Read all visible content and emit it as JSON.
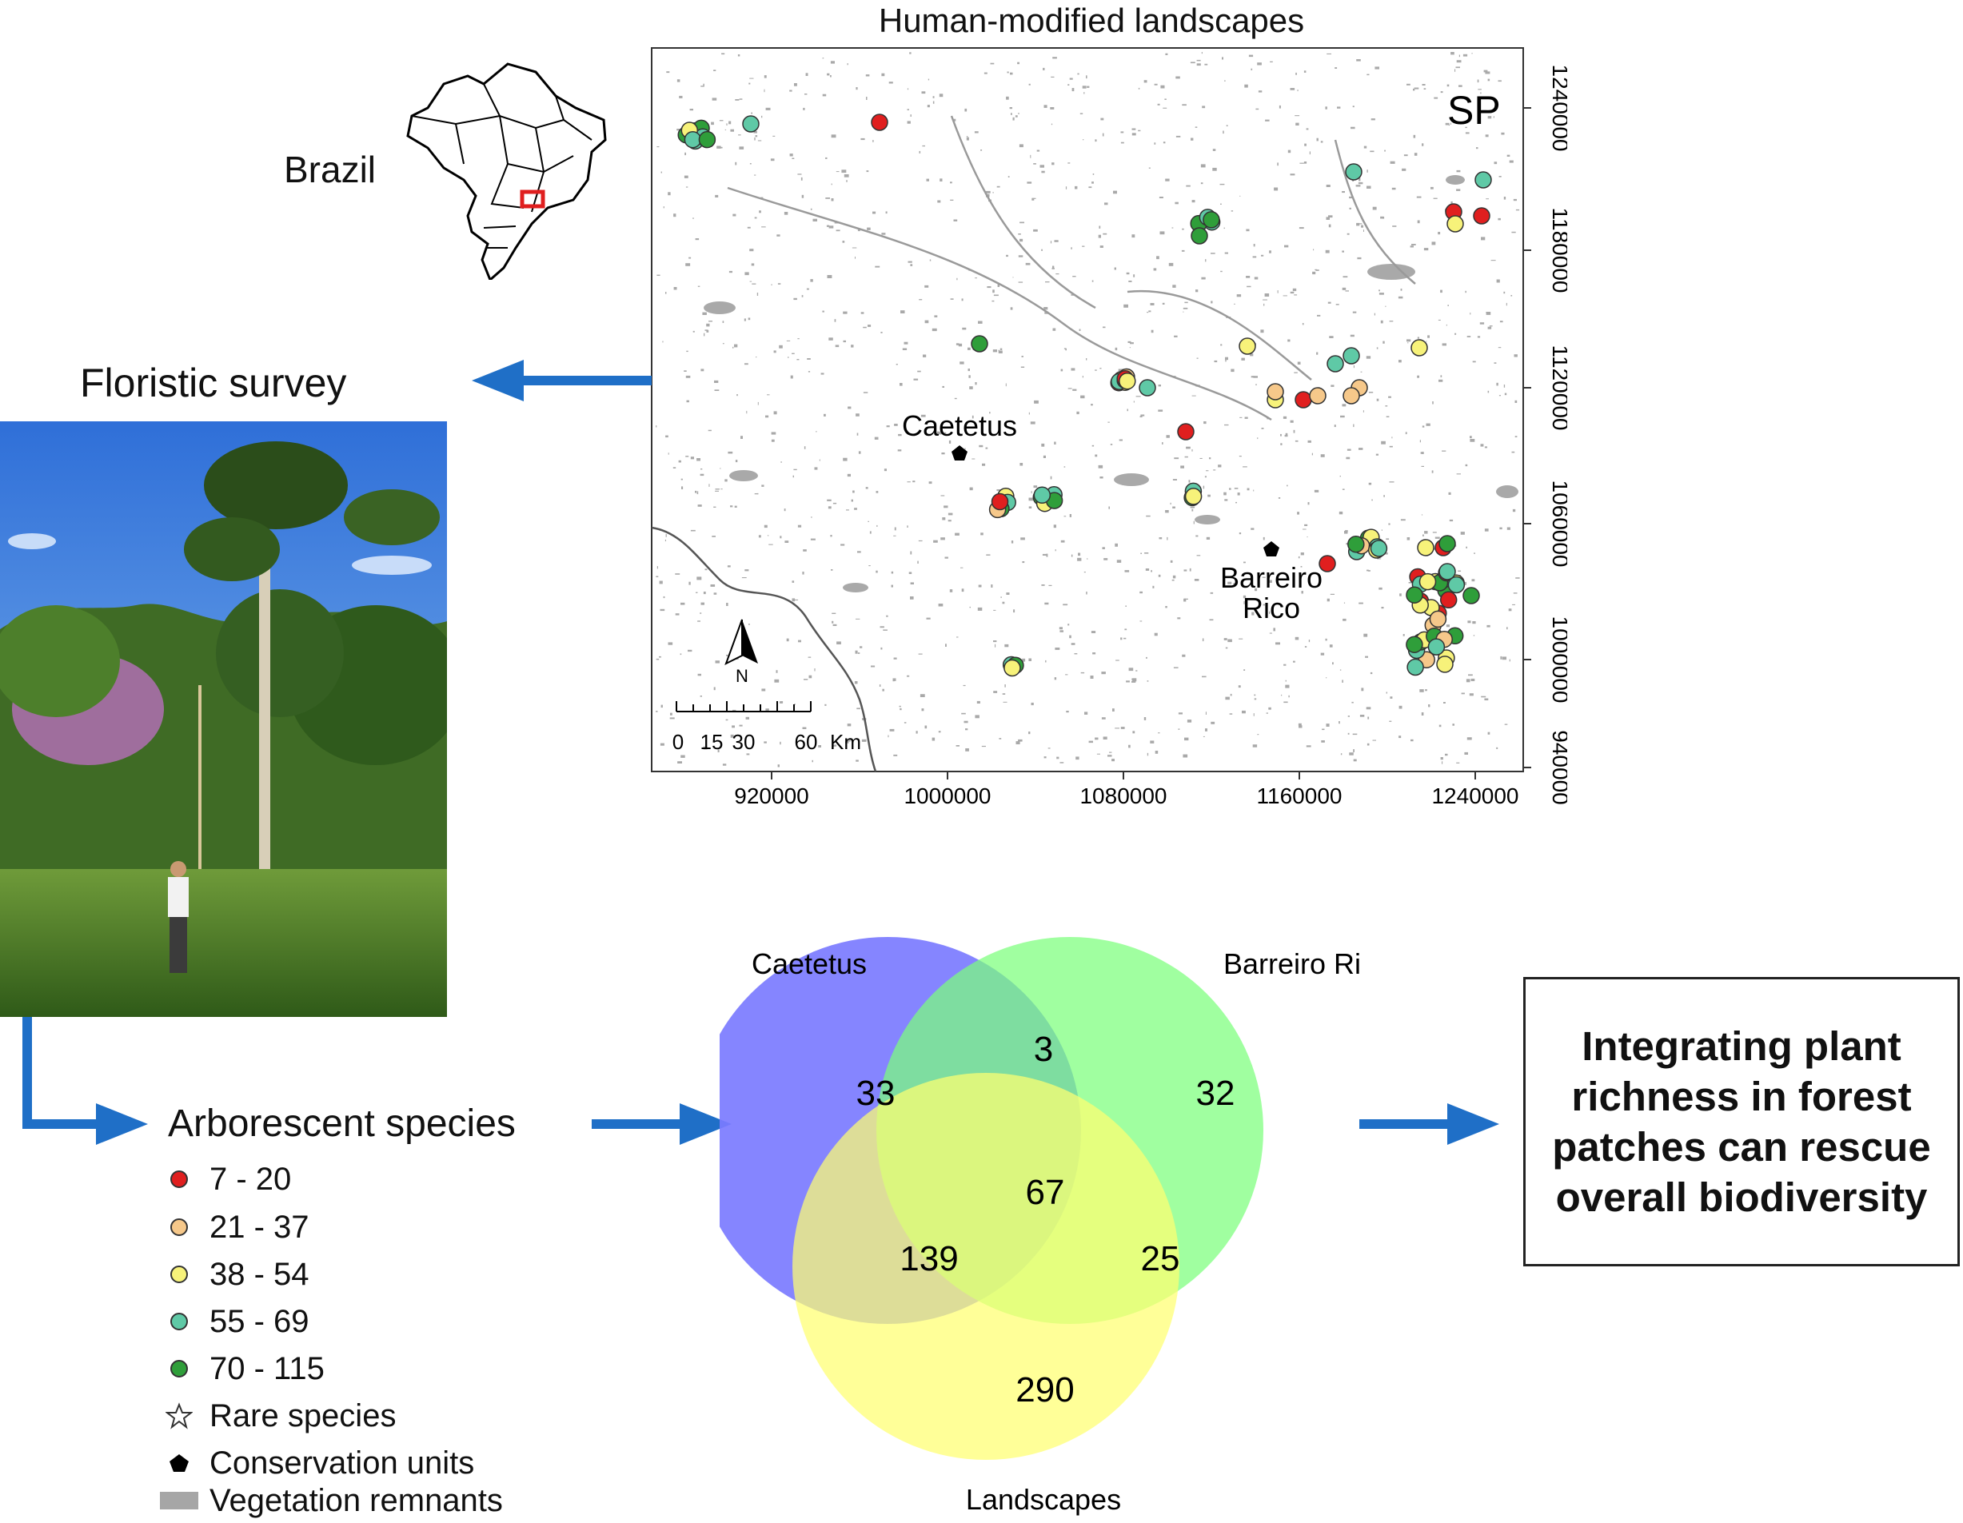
{
  "map": {
    "title": "Human-modified landscapes",
    "region_label": "SP",
    "x_ticks": [
      "920000",
      "1000000",
      "1080000",
      "1160000",
      "1240000"
    ],
    "y_ticks": [
      "1240000",
      "1180000",
      "1120000",
      "1060000",
      "1000000",
      "940000"
    ],
    "north_label": "N",
    "scale_numbers": [
      "0",
      "15",
      "30",
      "60"
    ],
    "scale_unit": "Km",
    "conservation_units": [
      {
        "lines": [
          "Caetetus"
        ]
      },
      {
        "lines": [
          "Barreiro",
          "Rico"
        ]
      }
    ]
  },
  "inset": {
    "country_label": "Brazil"
  },
  "survey": {
    "label": "Floristic survey"
  },
  "legend": {
    "title": "Arborescent species",
    "classes": [
      {
        "label": "7 - 20",
        "color": "#e01f1f"
      },
      {
        "label": "21 - 37",
        "color": "#f6c88a"
      },
      {
        "label": "38 - 54",
        "color": "#f7f27a"
      },
      {
        "label": "55 - 69",
        "color": "#5fc9a6"
      },
      {
        "label": "70 - 115",
        "color": "#2f9e3a"
      }
    ],
    "rare_label": "Rare species",
    "units_label": "Conservation units",
    "vegetation_label": "Vegetation remnants"
  },
  "venn": {
    "sets": [
      {
        "name": "Caetetus",
        "color": "#7b7bff"
      },
      {
        "name": "Barreiro Rico",
        "color": "#7cff7c"
      },
      {
        "name": "Landscapes",
        "color": "#ffff70"
      }
    ],
    "regions": {
      "caetetus_only": 33,
      "barreiro_only": 32,
      "landscapes_only": 290,
      "caetetus_barreiro": 3,
      "caetetus_landscapes": 139,
      "barreiro_landscapes": 25,
      "all_three": 67
    }
  },
  "conclusion": {
    "text": "Integrating plant richness in forest patches can rescue overall biodiversity"
  },
  "colors": {
    "arrow": "#1f6fc7"
  }
}
